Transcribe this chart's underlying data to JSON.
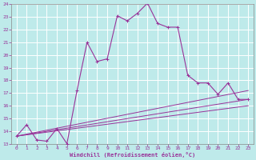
{
  "background_color": "#beeaea",
  "grid_color": "#ffffff",
  "line_color": "#993399",
  "xlabel": "Windchill (Refroidissement éolien,°C)",
  "xlim": [
    -0.5,
    23.5
  ],
  "ylim": [
    13,
    24
  ],
  "yticks": [
    13,
    14,
    15,
    16,
    17,
    18,
    19,
    20,
    21,
    22,
    23,
    24
  ],
  "xticks": [
    0,
    1,
    2,
    3,
    4,
    5,
    6,
    7,
    8,
    9,
    10,
    11,
    12,
    13,
    14,
    15,
    16,
    17,
    18,
    19,
    20,
    21,
    22,
    23
  ],
  "main_series": {
    "x": [
      0,
      1,
      2,
      3,
      4,
      5,
      6,
      7,
      8,
      9,
      10,
      11,
      12,
      13,
      14,
      15,
      16,
      17,
      18,
      19,
      20,
      21,
      22,
      23
    ],
    "y": [
      13.6,
      14.5,
      13.3,
      13.2,
      14.2,
      13.0,
      17.2,
      21.0,
      19.5,
      19.7,
      23.1,
      22.7,
      23.3,
      24.1,
      22.5,
      22.2,
      22.2,
      18.4,
      17.8,
      17.8,
      16.9,
      17.8,
      16.5,
      16.5
    ]
  },
  "diag_lines": [
    {
      "x": [
        0,
        23
      ],
      "y": [
        13.6,
        17.2
      ]
    },
    {
      "x": [
        0,
        23
      ],
      "y": [
        13.6,
        16.5
      ]
    },
    {
      "x": [
        0,
        23
      ],
      "y": [
        13.6,
        16.0
      ]
    }
  ]
}
